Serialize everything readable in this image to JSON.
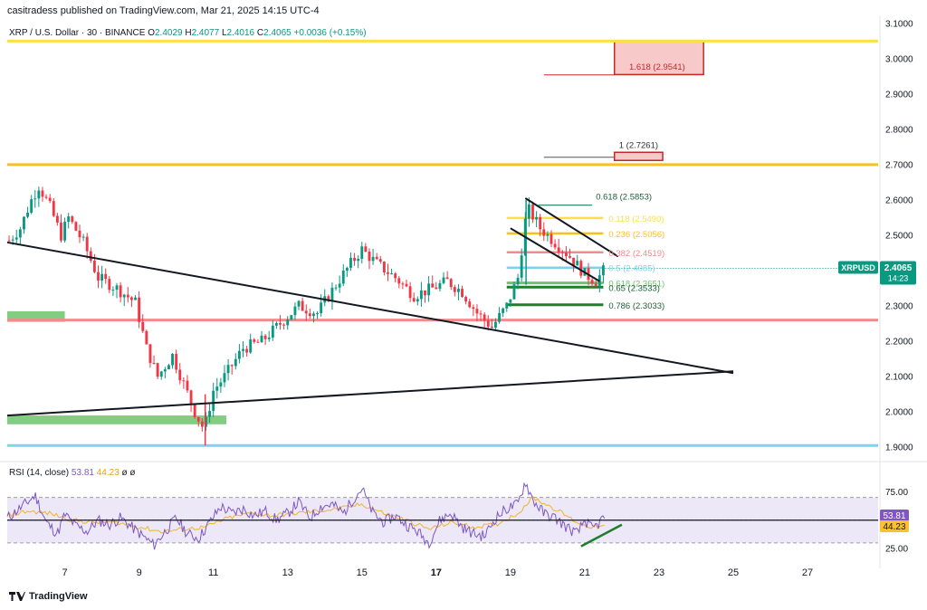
{
  "header": {
    "publisher": "casitradess published on TradingView.com, Mar 21, 2025 14:15 UTC-4",
    "symbol": "XRP / U.S. Dollar · 30 · BINANCE",
    "ohlc": [
      {
        "k": "O",
        "v": "2.4029"
      },
      {
        "k": "H",
        "v": "2.4077"
      },
      {
        "k": "L",
        "v": "2.4016"
      },
      {
        "k": "C",
        "v": "2.4065"
      }
    ],
    "change": "+0.0036 (+0.15%)"
  },
  "rsi_header": {
    "label": "RSI (14, close)",
    "rsi_value": "53.81",
    "ma_value": "44.23",
    "extra": "ø ø"
  },
  "brand": {
    "name": "TradingView"
  },
  "price_badge": {
    "symbol": "XRPUSD",
    "price": "2.4065",
    "countdown": "14:23"
  },
  "rsi_badges": {
    "rsi": "53.81",
    "ma": "44.23"
  },
  "colors": {
    "up": "#089981",
    "down": "#f23645",
    "rsi_line": "#7e57c2",
    "rsi_ma": "#f0b429",
    "yellow_level": "#fde047",
    "orange_level": "#fbbf24",
    "pink_level": "#f28b8b",
    "cyan_level": "#7dd3e8",
    "green_zone": "#6cc46c",
    "red_zone": "#e88a8a",
    "rsi_band": "#ece8f8"
  },
  "chart_data": [
    {
      "type": "candlestick",
      "title": "XRP / U.S. Dollar · 30 · BINANCE",
      "yticks": [
        "1.9000",
        "2.0000",
        "2.1000",
        "2.2000",
        "2.3000",
        "2.4000",
        "2.5000",
        "2.6000",
        "2.7000",
        "2.8000",
        "2.9000",
        "3.0000",
        "3.1000"
      ],
      "ylim": [
        1.88,
        3.12
      ],
      "xticks": [
        {
          "label": "7",
          "day": 7
        },
        {
          "label": "9",
          "day": 9
        },
        {
          "label": "11",
          "day": 11
        },
        {
          "label": "13",
          "day": 13
        },
        {
          "label": "15",
          "day": 15
        },
        {
          "label": "17",
          "day": 17
        },
        {
          "label": "19",
          "day": 19
        },
        {
          "label": "21",
          "day": 21
        },
        {
          "label": "23",
          "day": 23
        },
        {
          "label": "25",
          "day": 25
        },
        {
          "label": "27",
          "day": 27
        }
      ],
      "xlim": [
        5.45,
        28.9
      ],
      "price_path": [
        [
          5.45,
          2.48
        ],
        [
          5.8,
          2.52
        ],
        [
          6.1,
          2.6
        ],
        [
          6.3,
          2.64
        ],
        [
          6.6,
          2.58
        ],
        [
          6.9,
          2.5
        ],
        [
          7.1,
          2.55
        ],
        [
          7.5,
          2.48
        ],
        [
          7.9,
          2.38
        ],
        [
          8.4,
          2.35
        ],
        [
          8.9,
          2.31
        ],
        [
          9.2,
          2.18
        ],
        [
          9.5,
          2.1
        ],
        [
          9.9,
          2.16
        ],
        [
          10.2,
          2.08
        ],
        [
          10.5,
          2.0
        ],
        [
          10.75,
          1.95
        ],
        [
          11.0,
          2.06
        ],
        [
          11.3,
          2.1
        ],
        [
          11.8,
          2.18
        ],
        [
          12.3,
          2.2
        ],
        [
          12.8,
          2.25
        ],
        [
          13.3,
          2.3
        ],
        [
          13.8,
          2.28
        ],
        [
          14.3,
          2.36
        ],
        [
          14.7,
          2.42
        ],
        [
          15.0,
          2.46
        ],
        [
          15.4,
          2.42
        ],
        [
          15.9,
          2.38
        ],
        [
          16.4,
          2.33
        ],
        [
          16.9,
          2.35
        ],
        [
          17.3,
          2.37
        ],
        [
          17.7,
          2.34
        ],
        [
          18.1,
          2.28
        ],
        [
          18.5,
          2.24
        ],
        [
          18.9,
          2.3
        ],
        [
          19.2,
          2.38
        ],
        [
          19.45,
          2.58
        ],
        [
          19.8,
          2.52
        ],
        [
          20.2,
          2.48
        ],
        [
          20.6,
          2.44
        ],
        [
          21.0,
          2.39
        ],
        [
          21.3,
          2.37
        ],
        [
          21.55,
          2.4065
        ]
      ],
      "candle_days": [
        5.5,
        5.6,
        5.7,
        5.8,
        5.9,
        6.0,
        6.1,
        6.2,
        6.3,
        6.4,
        6.5,
        6.6,
        6.7,
        6.8,
        6.9,
        7.0,
        7.1,
        7.2,
        7.3,
        7.4,
        7.5,
        7.6,
        7.7,
        7.8,
        7.9,
        8.0,
        8.1,
        8.2,
        8.3,
        8.4,
        8.5,
        8.6,
        8.7,
        8.8,
        8.9,
        9.0,
        9.1,
        9.2,
        9.3,
        9.4,
        9.5,
        9.6,
        9.7,
        9.8,
        9.9,
        10.0,
        10.1,
        10.2,
        10.3,
        10.4,
        10.5,
        10.6,
        10.7,
        10.8,
        10.9,
        11.0,
        11.1,
        11.2,
        11.3,
        11.4,
        11.5,
        11.6,
        11.7,
        11.8,
        11.9,
        12.0,
        12.1,
        12.2,
        12.3,
        12.4,
        12.5,
        12.6,
        12.7,
        12.8,
        12.9,
        13.0,
        13.1,
        13.2,
        13.3,
        13.4,
        13.5,
        13.6,
        13.7,
        13.8,
        13.9,
        14.0,
        14.1,
        14.2,
        14.3,
        14.4,
        14.5,
        14.6,
        14.7,
        14.8,
        14.9,
        15.0,
        15.1,
        15.2,
        15.3,
        15.4,
        15.5,
        15.6,
        15.7,
        15.8,
        15.9,
        16.0,
        16.1,
        16.2,
        16.3,
        16.4,
        16.5,
        16.6,
        16.7,
        16.8,
        16.9,
        17.0,
        17.1,
        17.2,
        17.3,
        17.4,
        17.5,
        17.6,
        17.7,
        17.8,
        17.9,
        18.0,
        18.1,
        18.2,
        18.3,
        18.4,
        18.5,
        18.6,
        18.7,
        18.8,
        18.9,
        19.0,
        19.1,
        19.2,
        19.3,
        19.4,
        19.5,
        19.6,
        19.7,
        19.8,
        19.9,
        20.0,
        20.1,
        20.2,
        20.3,
        20.4,
        20.5,
        20.6,
        20.7,
        20.8,
        20.9,
        21.0,
        21.1,
        21.2,
        21.3,
        21.4,
        21.5
      ],
      "horizontal_levels": [
        {
          "price": 3.05,
          "color": "#fde047"
        },
        {
          "price": 2.7,
          "color": "#fbbf24"
        },
        {
          "price": 2.26,
          "color": "#f28b8b"
        },
        {
          "price": 1.905,
          "color": "#7dd3e8"
        }
      ],
      "fib_levels": [
        {
          "label": "0.618 (2.5853)",
          "price": 2.5853,
          "color": "#1e7e5f",
          "lx": [
            19.75,
            21.2
          ]
        },
        {
          "label": "0.118 (2.5490)",
          "price": 2.549,
          "color": "#fde047",
          "lx": [
            18.9,
            21.5
          ]
        },
        {
          "label": "0.236 (2.5056)",
          "price": 2.5056,
          "color": "#fbbf24",
          "lx": [
            18.9,
            21.5
          ]
        },
        {
          "label": "0.382 (2.4519)",
          "price": 2.4519,
          "color": "#f28b8b",
          "lx": [
            18.9,
            21.5
          ]
        },
        {
          "label": "0.5 (2.4085)",
          "price": 2.4085,
          "color": "#7dd3e8",
          "lx": [
            18.9,
            21.5
          ]
        },
        {
          "label": "0.618 (2.3651)",
          "price": 2.3651,
          "color": "#6cc46c",
          "lx": [
            18.9,
            21.5
          ]
        },
        {
          "label": "0.65 (2.3533)",
          "price": 2.3533,
          "color": "#1e7e2e",
          "lx": [
            18.9,
            21.5
          ]
        },
        {
          "label": "0.786 (2.3033)",
          "price": 2.3033,
          "color": "#1e7e2e",
          "lx": [
            18.9,
            21.5
          ]
        }
      ],
      "ext_levels": [
        {
          "label": "1.618 (2.9541)",
          "price": 2.9541
        },
        {
          "label": "1 (2.7261)",
          "price": 2.7261
        }
      ],
      "zones": [
        {
          "kind": "green",
          "x": [
            5.45,
            7.0
          ],
          "price": [
            2.255,
            2.285
          ]
        },
        {
          "kind": "green",
          "x": [
            5.45,
            11.35
          ],
          "price": [
            1.965,
            1.99
          ]
        },
        {
          "kind": "red",
          "x": [
            21.8,
            24.2
          ],
          "price": [
            2.955,
            3.05
          ]
        },
        {
          "kind": "red",
          "x": [
            21.8,
            23.1
          ],
          "price": [
            2.712,
            2.735
          ]
        }
      ],
      "trend_lines": [
        {
          "from": [
            5.45,
            2.48
          ],
          "to": [
            25.0,
            2.11
          ]
        },
        {
          "from": [
            5.45,
            1.99
          ],
          "to": [
            25.0,
            2.115
          ]
        },
        {
          "from": [
            19.4,
            2.605
          ],
          "to": [
            21.9,
            2.44
          ]
        },
        {
          "from": [
            19.0,
            2.52
          ],
          "to": [
            21.4,
            2.37
          ]
        }
      ],
      "current_price": 2.4065
    },
    {
      "type": "line",
      "title": "RSI (14, close)",
      "yticks": [
        "25.00",
        "50.00",
        "75.00"
      ],
      "ylim": [
        14,
        88
      ],
      "bands": [
        30,
        70
      ],
      "series": [
        {
          "name": "RSI",
          "color": "#7e57c2"
        },
        {
          "name": "MA",
          "color": "#f0b429"
        }
      ],
      "rsi_path": [
        [
          5.45,
          52
        ],
        [
          5.7,
          58
        ],
        [
          6.0,
          66
        ],
        [
          6.2,
          72
        ],
        [
          6.5,
          48
        ],
        [
          6.8,
          38
        ],
        [
          7.0,
          55
        ],
        [
          7.3,
          45
        ],
        [
          7.6,
          40
        ],
        [
          7.9,
          50
        ],
        [
          8.2,
          46
        ],
        [
          8.5,
          52
        ],
        [
          8.8,
          44
        ],
        [
          9.1,
          36
        ],
        [
          9.4,
          28
        ],
        [
          9.7,
          40
        ],
        [
          10.0,
          52
        ],
        [
          10.3,
          38
        ],
        [
          10.6,
          34
        ],
        [
          10.9,
          48
        ],
        [
          11.2,
          62
        ],
        [
          11.5,
          56
        ],
        [
          11.8,
          60
        ],
        [
          12.1,
          54
        ],
        [
          12.4,
          58
        ],
        [
          12.7,
          50
        ],
        [
          13.0,
          56
        ],
        [
          13.3,
          66
        ],
        [
          13.6,
          52
        ],
        [
          13.9,
          62
        ],
        [
          14.2,
          64
        ],
        [
          14.5,
          56
        ],
        [
          14.8,
          70
        ],
        [
          15.0,
          78
        ],
        [
          15.3,
          56
        ],
        [
          15.6,
          48
        ],
        [
          15.9,
          54
        ],
        [
          16.2,
          46
        ],
        [
          16.5,
          40
        ],
        [
          16.8,
          30
        ],
        [
          17.1,
          50
        ],
        [
          17.4,
          56
        ],
        [
          17.7,
          44
        ],
        [
          18.0,
          38
        ],
        [
          18.3,
          36
        ],
        [
          18.6,
          52
        ],
        [
          18.9,
          60
        ],
        [
          19.2,
          64
        ],
        [
          19.4,
          84
        ],
        [
          19.6,
          68
        ],
        [
          19.9,
          56
        ],
        [
          20.2,
          52
        ],
        [
          20.5,
          44
        ],
        [
          20.8,
          38
        ],
        [
          21.0,
          50
        ],
        [
          21.2,
          42
        ],
        [
          21.35,
          46
        ],
        [
          21.55,
          53.81
        ]
      ],
      "ma_path": [
        [
          5.45,
          54
        ],
        [
          6.0,
          58
        ],
        [
          6.6,
          56
        ],
        [
          7.2,
          50
        ],
        [
          7.8,
          48
        ],
        [
          8.4,
          48
        ],
        [
          9.0,
          44
        ],
        [
          9.6,
          40
        ],
        [
          10.2,
          42
        ],
        [
          10.8,
          44
        ],
        [
          11.4,
          52
        ],
        [
          12.0,
          56
        ],
        [
          12.6,
          54
        ],
        [
          13.2,
          56
        ],
        [
          13.8,
          58
        ],
        [
          14.4,
          60
        ],
        [
          15.0,
          64
        ],
        [
          15.6,
          56
        ],
        [
          16.2,
          50
        ],
        [
          16.8,
          42
        ],
        [
          17.4,
          48
        ],
        [
          18.0,
          44
        ],
        [
          18.6,
          46
        ],
        [
          19.2,
          56
        ],
        [
          19.6,
          70
        ],
        [
          20.2,
          60
        ],
        [
          20.8,
          48
        ],
        [
          21.2,
          44
        ],
        [
          21.55,
          44.23
        ]
      ],
      "trend_line": {
        "from": [
          20.9,
          27
        ],
        "to": [
          22.0,
          46
        ]
      },
      "current_rsi": 53.81,
      "current_ma": 44.23
    }
  ]
}
